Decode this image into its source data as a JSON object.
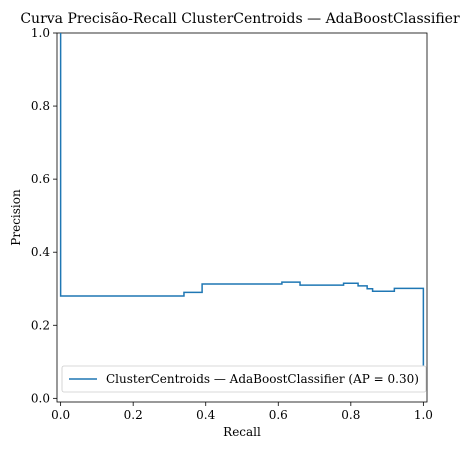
{
  "chart_data": {
    "type": "line",
    "title": "Curva Precisão-Recall ClusterCentroids — AdaBoostClassifier",
    "xlabel": "Recall",
    "ylabel": "Precision",
    "xlim": [
      -0.01,
      1.01
    ],
    "ylim": [
      -0.01,
      1.0
    ],
    "xticks": [
      0.0,
      0.2,
      0.4,
      0.6,
      0.8,
      1.0
    ],
    "xtick_labels": [
      "0.0",
      "0.2",
      "0.4",
      "0.6",
      "0.8",
      "1.0"
    ],
    "yticks": [
      0.0,
      0.2,
      0.4,
      0.6,
      0.8,
      1.0
    ],
    "ytick_labels": [
      "0.0",
      "0.2",
      "0.4",
      "0.6",
      "0.8",
      "1.0"
    ],
    "grid": false,
    "legend_position": "lower-right",
    "series": [
      {
        "name": "ClusterCentroids — AdaBoostClassifier (AP = 0.30)",
        "color": "#1f77b4",
        "step": "post",
        "x": [
          0.0,
          0.0,
          0.34,
          0.34,
          0.39,
          0.39,
          0.61,
          0.61,
          0.66,
          0.66,
          0.78,
          0.78,
          0.82,
          0.82,
          0.845,
          0.845,
          0.86,
          0.86,
          0.92,
          0.92,
          1.0,
          1.0
        ],
        "y": [
          1.0,
          0.28,
          0.28,
          0.29,
          0.29,
          0.313,
          0.313,
          0.318,
          0.318,
          0.31,
          0.31,
          0.315,
          0.315,
          0.308,
          0.308,
          0.3,
          0.3,
          0.293,
          0.293,
          0.301,
          0.301,
          0.09
        ]
      }
    ]
  }
}
